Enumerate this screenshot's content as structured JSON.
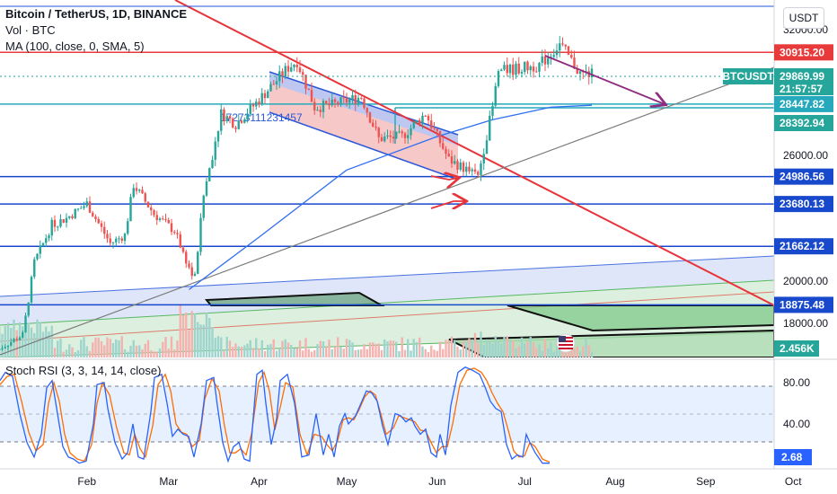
{
  "header": {
    "title": "Bitcoin / TetherUS, 1D, BINANCE",
    "volume_label": "Vol · BTC",
    "ma_label": "MA (100, close, 0, SMA, 5)",
    "currency": "USDT",
    "rsi_label": "Stoch RSI (3, 3, 14, 14, close)"
  },
  "chart_data": [
    {
      "type": "candlestick",
      "title": "Bitcoin / TetherUS, 1D, BINANCE",
      "x_categories": [
        "Feb",
        "Mar",
        "Apr",
        "May",
        "Jun",
        "Jul",
        "Aug",
        "Sep",
        "Oct"
      ],
      "y_ticks": [
        18000,
        20000,
        26000,
        32000
      ],
      "ylim": [
        16000,
        33500
      ],
      "series": [
        {
          "name": "BTCUSDT",
          "close_path": [
            {
              "x": "2023-01-01",
              "y": 16600
            },
            {
              "x": "2023-01-10",
              "y": 17400
            },
            {
              "x": "2023-01-14",
              "y": 20900
            },
            {
              "x": "2023-01-20",
              "y": 22700
            },
            {
              "x": "2023-01-25",
              "y": 23000
            },
            {
              "x": "2023-02-01",
              "y": 23700
            },
            {
              "x": "2023-02-09",
              "y": 21800
            },
            {
              "x": "2023-02-14",
              "y": 22200
            },
            {
              "x": "2023-02-17",
              "y": 24600
            },
            {
              "x": "2023-02-24",
              "y": 23200
            },
            {
              "x": "2023-03-03",
              "y": 22400
            },
            {
              "x": "2023-03-09",
              "y": 20300
            },
            {
              "x": "2023-03-10",
              "y": 20200
            },
            {
              "x": "2023-03-13",
              "y": 24100
            },
            {
              "x": "2023-03-19",
              "y": 28000
            },
            {
              "x": "2023-03-24",
              "y": 27500
            },
            {
              "x": "2023-03-31",
              "y": 28500
            },
            {
              "x": "2023-04-11",
              "y": 30200
            },
            {
              "x": "2023-04-14",
              "y": 30500
            },
            {
              "x": "2023-04-20",
              "y": 28300
            },
            {
              "x": "2023-04-26",
              "y": 28400
            },
            {
              "x": "2023-05-06",
              "y": 28800
            },
            {
              "x": "2023-05-12",
              "y": 26800
            },
            {
              "x": "2023-05-20",
              "y": 26900
            },
            {
              "x": "2023-05-28",
              "y": 28000
            },
            {
              "x": "2023-06-05",
              "y": 25800
            },
            {
              "x": "2023-06-15",
              "y": 25000
            },
            {
              "x": "2023-06-20",
              "y": 28300
            },
            {
              "x": "2023-06-22",
              "y": 30000
            },
            {
              "x": "2023-07-06",
              "y": 30300
            },
            {
              "x": "2023-07-13",
              "y": 31300
            },
            {
              "x": "2023-07-20",
              "y": 29900
            },
            {
              "x": "2023-07-24",
              "y": 29870
            }
          ]
        },
        {
          "name": "MA (100, close, 0, SMA, 5)",
          "points": [
            {
              "x": "2023-03-08",
              "y": 19600
            },
            {
              "x": "2023-04-01",
              "y": 22100
            },
            {
              "x": "2023-05-01",
              "y": 25300
            },
            {
              "x": "2023-06-01",
              "y": 26900
            },
            {
              "x": "2023-06-20",
              "y": 27700
            },
            {
              "x": "2023-07-10",
              "y": 28300
            },
            {
              "x": "2023-07-24",
              "y": 28393
            }
          ]
        }
      ],
      "horizontal_levels": [
        {
          "value": 30915.2,
          "label": "30915.20",
          "color": "#e83a3a"
        },
        {
          "value": 28447.82,
          "label": "28447.82",
          "color": "#26a9bc"
        },
        {
          "value": 24986.56,
          "label": "24986.56",
          "color": "#1848cc"
        },
        {
          "value": 23680.13,
          "label": "23680.13",
          "color": "#1848cc"
        },
        {
          "value": 21662.12,
          "label": "21662.12",
          "color": "#1848cc"
        },
        {
          "value": 18875.48,
          "label": "18875.48",
          "color": "#1848cc"
        }
      ],
      "price_tags": [
        {
          "label": "29869.99",
          "sub": "21:57:57",
          "color": "#26a69a"
        },
        {
          "label": "28392.94",
          "color": "#26a69a"
        },
        {
          "label": "2.456K",
          "color": "#26a69a"
        }
      ],
      "symbol_tag": "BTCUSDT",
      "drawings_text": "17273111231457"
    },
    {
      "type": "line",
      "title": "Stoch RSI (3, 3, 14, 14, close)",
      "y_ticks": [
        40,
        80
      ],
      "ylim": [
        0,
        100
      ],
      "bands": [
        20,
        80
      ],
      "current_value": 2.68,
      "series": [
        {
          "name": "K",
          "points": [
            [
              0,
              82
            ],
            [
              6,
              90
            ],
            [
              14,
              86
            ],
            [
              22,
              50
            ],
            [
              30,
              22
            ],
            [
              38,
              8
            ],
            [
              46,
              30
            ],
            [
              52,
              75
            ],
            [
              58,
              82
            ],
            [
              64,
              50
            ],
            [
              70,
              18
            ],
            [
              76,
              8
            ],
            [
              82,
              6
            ],
            [
              88,
              2
            ],
            [
              96,
              4
            ],
            [
              104,
              40
            ],
            [
              108,
              78
            ],
            [
              116,
              80
            ],
            [
              120,
              55
            ],
            [
              128,
              22
            ],
            [
              136,
              6
            ],
            [
              142,
              12
            ],
            [
              148,
              40
            ],
            [
              154,
              8
            ],
            [
              160,
              6
            ],
            [
              168,
              52
            ],
            [
              172,
              85
            ],
            [
              180,
              88
            ],
            [
              186,
              60
            ],
            [
              192,
              28
            ],
            [
              198,
              35
            ],
            [
              204,
              30
            ],
            [
              210,
              28
            ],
            [
              216,
              8
            ],
            [
              224,
              40
            ],
            [
              230,
              82
            ],
            [
              238,
              85
            ],
            [
              242,
              58
            ],
            [
              248,
              22
            ],
            [
              254,
              4
            ],
            [
              260,
              18
            ],
            [
              266,
              22
            ],
            [
              272,
              6
            ],
            [
              278,
              4
            ],
            [
              286,
              88
            ],
            [
              292,
              92
            ],
            [
              296,
              60
            ],
            [
              302,
              20
            ],
            [
              308,
              45
            ],
            [
              312,
              82
            ],
            [
              320,
              88
            ],
            [
              328,
              60
            ],
            [
              336,
              8
            ],
            [
              344,
              10
            ],
            [
              352,
              50
            ],
            [
              360,
              10
            ],
            [
              366,
              30
            ],
            [
              372,
              8
            ],
            [
              378,
              38
            ],
            [
              384,
              50
            ],
            [
              388,
              40
            ],
            [
              396,
              48
            ],
            [
              402,
              60
            ],
            [
              408,
              72
            ],
            [
              414,
              70
            ],
            [
              420,
              62
            ],
            [
              426,
              38
            ],
            [
              432,
              20
            ],
            [
              440,
              50
            ],
            [
              446,
              48
            ],
            [
              452,
              42
            ],
            [
              458,
              46
            ],
            [
              462,
              38
            ],
            [
              468,
              30
            ],
            [
              474,
              35
            ],
            [
              480,
              12
            ],
            [
              486,
              8
            ],
            [
              490,
              30
            ],
            [
              496,
              10
            ],
            [
              502,
              58
            ],
            [
              510,
              90
            ],
            [
              518,
              95
            ],
            [
              526,
              92
            ],
            [
              534,
              88
            ],
            [
              540,
              76
            ],
            [
              546,
              62
            ],
            [
              552,
              55
            ],
            [
              558,
              52
            ],
            [
              564,
              20
            ],
            [
              570,
              6
            ],
            [
              576,
              10
            ],
            [
              582,
              8
            ],
            [
              586,
              30
            ],
            [
              590,
              22
            ],
            [
              596,
              12
            ],
            [
              604,
              2
            ],
            [
              612,
              2
            ]
          ]
        },
        {
          "name": "D",
          "points": [
            [
              0,
              78
            ],
            [
              8,
              86
            ],
            [
              16,
              88
            ],
            [
              24,
              62
            ],
            [
              32,
              32
            ],
            [
              40,
              14
            ],
            [
              48,
              20
            ],
            [
              54,
              60
            ],
            [
              60,
              80
            ],
            [
              66,
              62
            ],
            [
              72,
              30
            ],
            [
              78,
              12
            ],
            [
              86,
              6
            ],
            [
              94,
              4
            ],
            [
              102,
              20
            ],
            [
              108,
              60
            ],
            [
              114,
              80
            ],
            [
              122,
              68
            ],
            [
              130,
              36
            ],
            [
              138,
              12
            ],
            [
              144,
              10
            ],
            [
              150,
              30
            ],
            [
              156,
              16
            ],
            [
              162,
              8
            ],
            [
              170,
              38
            ],
            [
              176,
              78
            ],
            [
              184,
              88
            ],
            [
              190,
              72
            ],
            [
              196,
              40
            ],
            [
              202,
              32
            ],
            [
              208,
              30
            ],
            [
              214,
              18
            ],
            [
              222,
              24
            ],
            [
              228,
              64
            ],
            [
              236,
              84
            ],
            [
              244,
              72
            ],
            [
              250,
              38
            ],
            [
              256,
              12
            ],
            [
              262,
              12
            ],
            [
              268,
              16
            ],
            [
              274,
              10
            ],
            [
              280,
              30
            ],
            [
              288,
              80
            ],
            [
              294,
              90
            ],
            [
              300,
              72
            ],
            [
              306,
              34
            ],
            [
              312,
              56
            ],
            [
              318,
              80
            ],
            [
              326,
              76
            ],
            [
              334,
              30
            ],
            [
              342,
              10
            ],
            [
              350,
              30
            ],
            [
              358,
              28
            ],
            [
              364,
              20
            ],
            [
              370,
              14
            ],
            [
              376,
              24
            ],
            [
              382,
              44
            ],
            [
              388,
              46
            ],
            [
              394,
              44
            ],
            [
              400,
              54
            ],
            [
              406,
              66
            ],
            [
              412,
              72
            ],
            [
              418,
              68
            ],
            [
              424,
              50
            ],
            [
              430,
              30
            ],
            [
              438,
              36
            ],
            [
              444,
              48
            ],
            [
              450,
              46
            ],
            [
              456,
              44
            ],
            [
              462,
              42
            ],
            [
              468,
              34
            ],
            [
              474,
              33
            ],
            [
              480,
              22
            ],
            [
              486,
              12
            ],
            [
              492,
              18
            ],
            [
              498,
              18
            ],
            [
              504,
              40
            ],
            [
              512,
              78
            ],
            [
              520,
              92
            ],
            [
              528,
              94
            ],
            [
              536,
              90
            ],
            [
              542,
              82
            ],
            [
              548,
              70
            ],
            [
              554,
              60
            ],
            [
              560,
              52
            ],
            [
              566,
              34
            ],
            [
              572,
              14
            ],
            [
              578,
              8
            ],
            [
              584,
              9
            ],
            [
              590,
              22
            ],
            [
              596,
              18
            ],
            [
              604,
              6
            ],
            [
              612,
              3
            ]
          ]
        }
      ]
    }
  ]
}
